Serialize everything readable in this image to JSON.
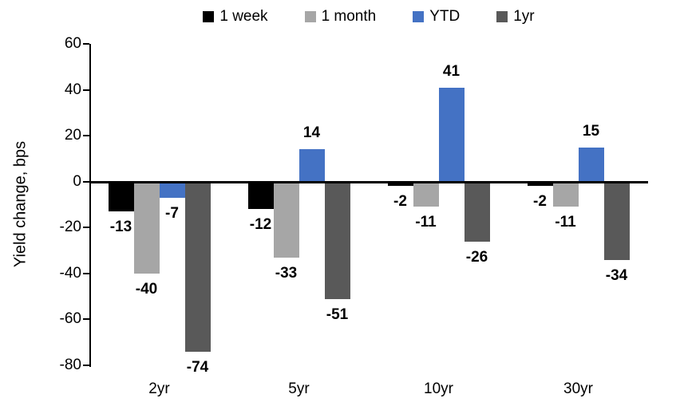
{
  "chart_data": {
    "type": "bar",
    "title": "",
    "ylabel": "Yield change, bps",
    "xlabel": "",
    "categories": [
      "2yr",
      "5yr",
      "10yr",
      "30yr"
    ],
    "series": [
      {
        "name": "1 week",
        "color": "#000000",
        "values": [
          -13,
          -12,
          -2,
          -2
        ]
      },
      {
        "name": "1 month",
        "color": "#A6A6A6",
        "values": [
          -40,
          -33,
          -11,
          -11
        ]
      },
      {
        "name": "YTD",
        "color": "#4472C4",
        "values": [
          -7,
          14,
          41,
          15
        ]
      },
      {
        "name": "1yr",
        "color": "#595959",
        "values": [
          -74,
          -51,
          -26,
          -34
        ]
      }
    ],
    "ylim": [
      -80,
      60
    ],
    "yticks": [
      60,
      40,
      20,
      0,
      -20,
      -40,
      -60,
      -80
    ],
    "grid": false,
    "legend_position": "top-center",
    "data_labels": true,
    "axis_color": "#000000",
    "background_color": "#FFFFFF"
  }
}
